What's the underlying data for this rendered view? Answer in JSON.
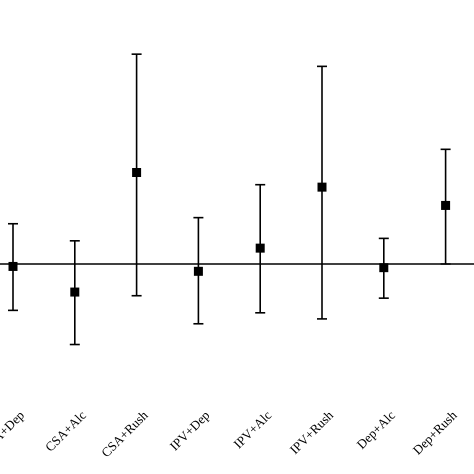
{
  "chart_data": {
    "type": "scatter",
    "subtype": "point-estimate-with-error-bars",
    "title": "",
    "xlabel": "",
    "ylabel": "",
    "categories": [
      "CSA+Dep",
      "CSA+Alc",
      "CSA+Rush",
      "IPV+Dep",
      "IPV+Alc",
      "IPV+Rush",
      "Dep+Alc",
      "Dep+Rush"
    ],
    "estimate": [
      -0.02,
      -0.23,
      0.75,
      -0.06,
      0.13,
      0.63,
      -0.03,
      0.48
    ],
    "lower": [
      -0.38,
      -0.66,
      -0.26,
      -0.49,
      -0.4,
      -0.45,
      -0.28,
      0.0
    ],
    "upper": [
      0.33,
      0.19,
      1.72,
      0.38,
      0.65,
      1.62,
      0.21,
      0.94
    ],
    "reference_line": 0,
    "ylim": [
      -1.08,
      2.12
    ],
    "marker": "square",
    "grid": false,
    "legend": "none",
    "colors": {
      "marks": "#000000",
      "background": "#ffffff"
    }
  }
}
